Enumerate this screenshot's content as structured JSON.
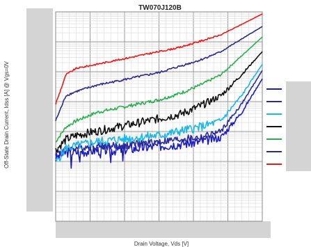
{
  "chart_data": {
    "type": "line",
    "title": "TW070J120B",
    "xlabel": "Drain Voltage,  Vds [V]",
    "ylabel": "Off-State Drain Current,  Idss [A]  @ Vgs=0V",
    "x_ticks_hidden": true,
    "y_ticks_hidden": true,
    "legend": "right",
    "legend_labels_hidden": true,
    "grid": true,
    "x_scale": "linear",
    "y_scale": "log",
    "xlim": [
      0,
      1.0
    ],
    "ylim": [
      0,
      1.0
    ],
    "x": [
      0.0,
      0.05,
      0.1,
      0.2,
      0.3,
      0.4,
      0.5,
      0.6,
      0.7,
      0.8,
      0.9,
      1.0
    ],
    "series": [
      {
        "color": "#1a1ac8",
        "values": [
          0.3,
          0.33,
          0.33,
          0.34,
          0.34,
          0.35,
          0.36,
          0.37,
          0.38,
          0.4,
          0.52,
          0.68
        ]
      },
      {
        "color": "#2a2a9a",
        "values": [
          0.33,
          0.34,
          0.35,
          0.36,
          0.36,
          0.37,
          0.38,
          0.39,
          0.4,
          0.43,
          0.56,
          0.72
        ]
      },
      {
        "color": "#18b8e8",
        "values": [
          0.28,
          0.35,
          0.36,
          0.38,
          0.39,
          0.4,
          0.41,
          0.43,
          0.45,
          0.48,
          0.6,
          0.75
        ]
      },
      {
        "color": "#111111",
        "values": [
          0.34,
          0.39,
          0.41,
          0.43,
          0.45,
          0.47,
          0.49,
          0.51,
          0.55,
          0.6,
          0.7,
          0.81
        ]
      },
      {
        "color": "#28b050",
        "values": [
          0.38,
          0.45,
          0.48,
          0.52,
          0.54,
          0.56,
          0.58,
          0.61,
          0.65,
          0.7,
          0.79,
          0.88
        ]
      },
      {
        "color": "#2a2a88",
        "values": [
          0.48,
          0.6,
          0.62,
          0.65,
          0.67,
          0.69,
          0.71,
          0.74,
          0.77,
          0.81,
          0.87,
          0.93
        ]
      },
      {
        "color": "#ee1818",
        "values": [
          0.56,
          0.7,
          0.73,
          0.75,
          0.77,
          0.79,
          0.81,
          0.83,
          0.86,
          0.89,
          0.94,
          0.99
        ]
      }
    ]
  }
}
